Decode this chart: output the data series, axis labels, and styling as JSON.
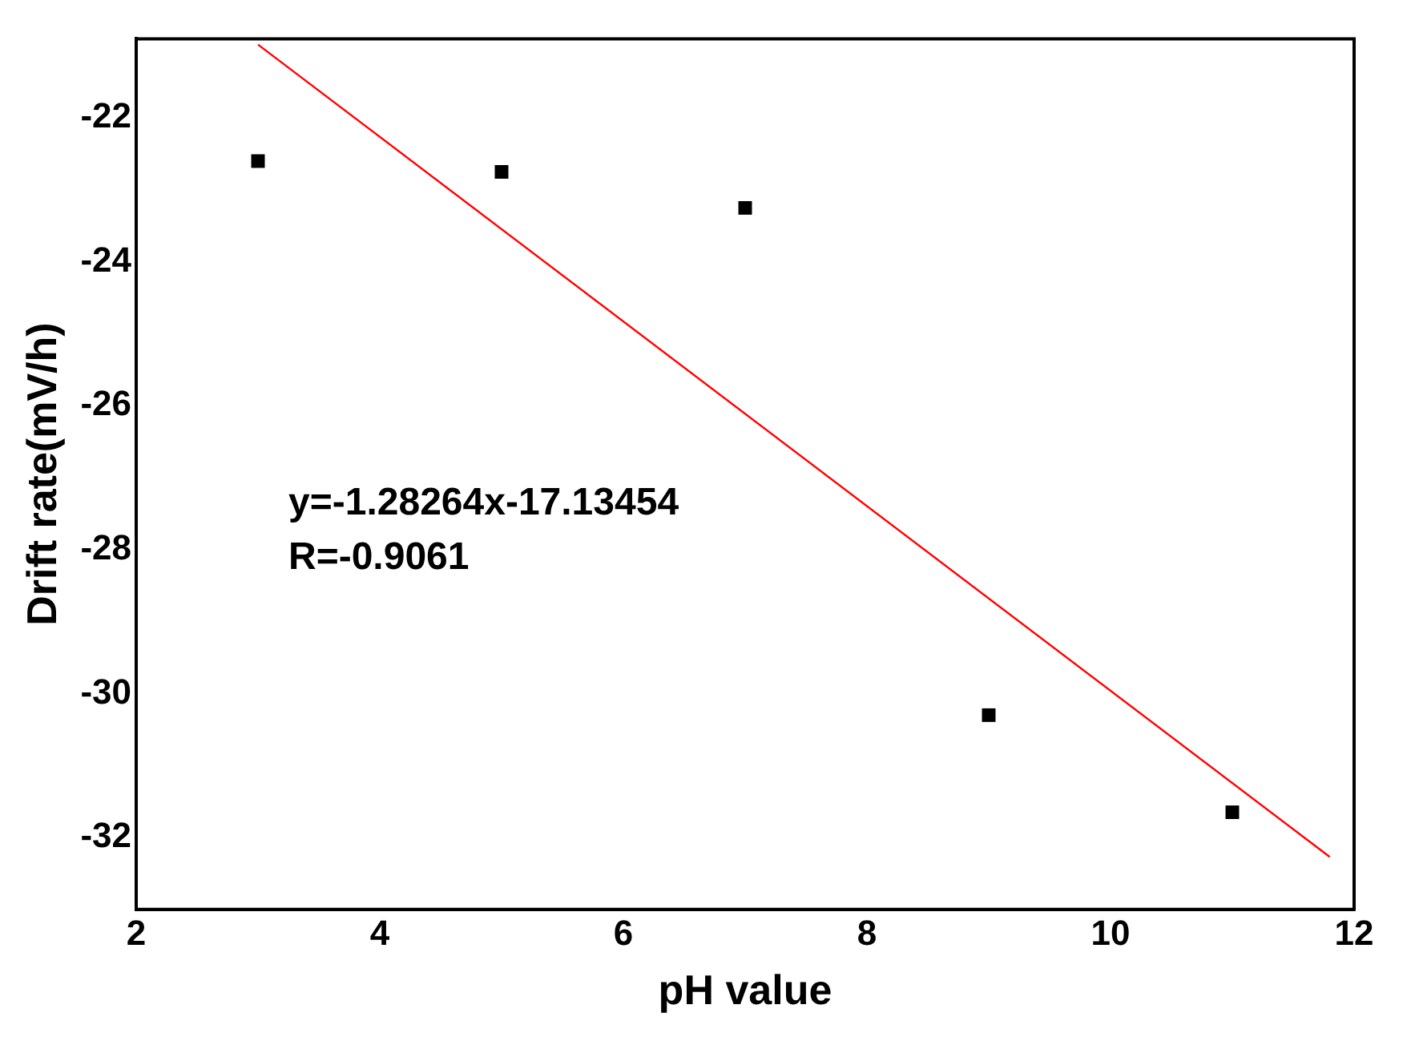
{
  "chart_data": {
    "type": "scatter",
    "xlabel": "pH value",
    "ylabel": "Drift rate(mV/h)",
    "x": [
      3,
      5,
      7,
      9,
      11
    ],
    "series": [
      {
        "color": "#000000",
        "values": [
          -22.6,
          -22.75,
          -23.25,
          -30.3,
          -31.65
        ],
        "marker": "square"
      },
      {
        "type": "line",
        "color": "#ff0000",
        "x": [
          3,
          11.8
        ],
        "values": [
          -20.98,
          -32.27
        ],
        "marker": "none"
      }
    ],
    "annotations": [
      "y=-1.28264x-17.13454",
      "R=-0.9061"
    ],
    "xlim": [
      2,
      12
    ],
    "xticks": [
      2,
      4,
      6,
      8,
      10,
      12
    ],
    "ylim": [
      -33,
      -20.9
    ],
    "yticks": [
      -22,
      -24,
      -26,
      -28,
      -30,
      -32
    ],
    "grid": false,
    "legend": false
  }
}
